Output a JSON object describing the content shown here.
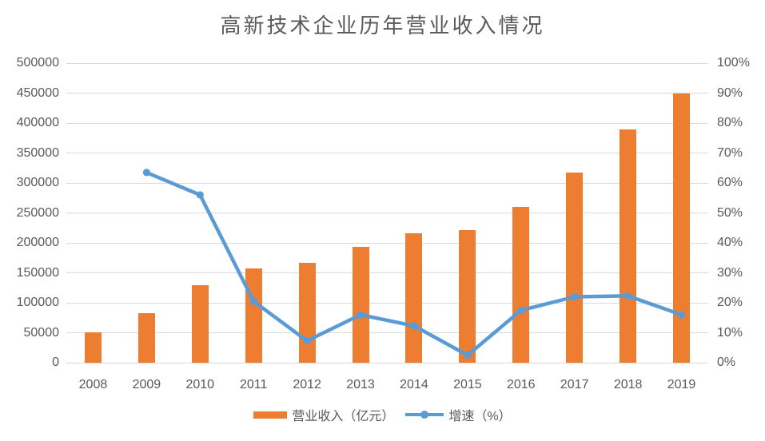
{
  "chart_data": {
    "type": "combo-bar-line",
    "title": "高新技术企业历年营业收入情况",
    "categories": [
      "2008",
      "2009",
      "2010",
      "2011",
      "2012",
      "2013",
      "2014",
      "2015",
      "2016",
      "2017",
      "2018",
      "2019"
    ],
    "series": [
      {
        "name": "营业收入（亿元）",
        "type": "bar",
        "axis": "left",
        "color": "#ED7D31",
        "values": [
          51000,
          83000,
          130000,
          157000,
          167000,
          194000,
          216000,
          222000,
          260000,
          318000,
          389000,
          450000
        ]
      },
      {
        "name": "增速（%）",
        "type": "line",
        "axis": "right",
        "color": "#5B9BD5",
        "values": [
          null,
          63.5,
          56,
          20.5,
          7.3,
          16,
          12.3,
          2.5,
          17.5,
          22,
          22.3,
          16
        ]
      }
    ],
    "left_axis": {
      "min": 0,
      "max": 500000,
      "step": 50000,
      "ticks": [
        "0",
        "50000",
        "100000",
        "150000",
        "200000",
        "250000",
        "300000",
        "350000",
        "400000",
        "450000",
        "500000"
      ]
    },
    "right_axis": {
      "min": 0,
      "max": 100,
      "step": 10,
      "ticks": [
        "0%",
        "10%",
        "20%",
        "30%",
        "40%",
        "50%",
        "60%",
        "70%",
        "80%",
        "90%",
        "100%"
      ]
    },
    "grid": true,
    "legend_position": "bottom",
    "colors": {
      "gridline": "#D9D9D9",
      "axis_label": "#595959",
      "title": "#595959",
      "background": "#ffffff"
    }
  }
}
